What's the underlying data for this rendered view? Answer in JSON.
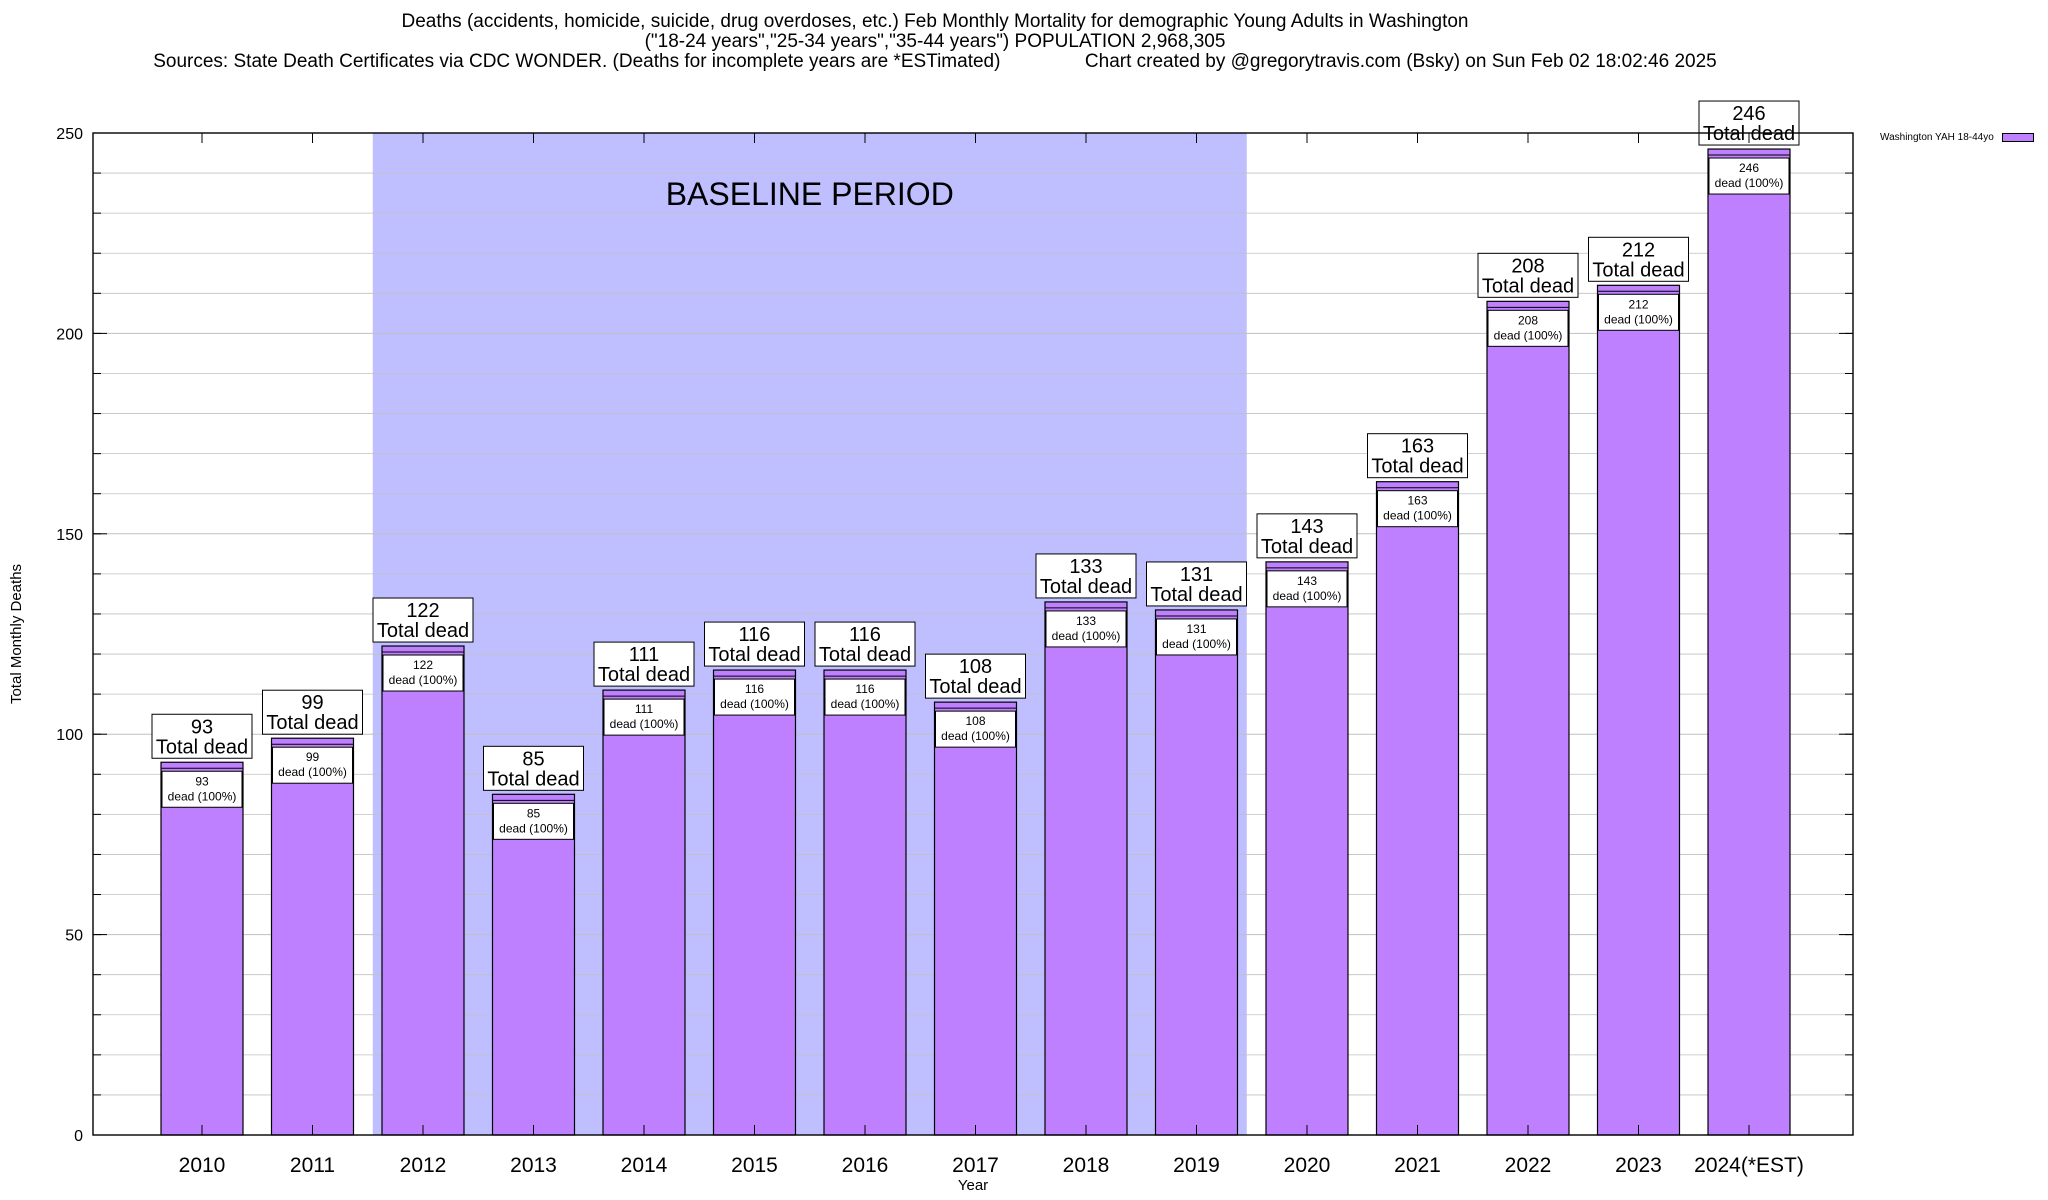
{
  "title": {
    "line1": "Deaths (accidents, homicide, suicide, drug overdoses, etc.) Feb Monthly Mortality for demographic Young Adults in Washington",
    "line2": "(\"18-24 years\",\"25-34 years\",\"35-44 years\") POPULATION 2,968,305",
    "line3_left": "Sources: State Death Certificates via CDC WONDER. (Deaths for incomplete years are *ESTimated)",
    "line3_right": "Chart created by @gregorytravis.com (Bsky) on Sun Feb 02 18:02:46 2025"
  },
  "legend": {
    "label": "Washington YAH 18-44yo"
  },
  "colors": {
    "bar": "#bf80ff",
    "baseline": "#bfbfff",
    "grid": "#c0c0c0"
  },
  "chart_data": {
    "type": "bar",
    "categories": [
      "2010",
      "2011",
      "2012",
      "2013",
      "2014",
      "2015",
      "2016",
      "2017",
      "2018",
      "2019",
      "2020",
      "2021",
      "2022",
      "2023",
      "2024(*EST)"
    ],
    "series": [
      {
        "name": "Washington YAH 18-44yo",
        "values": [
          93,
          99,
          122,
          85,
          111,
          116,
          116,
          108,
          133,
          131,
          143,
          163,
          208,
          212,
          246
        ]
      }
    ],
    "xlabel": "Year",
    "ylabel": "Total Monthly Deaths",
    "ylim": [
      0,
      250
    ],
    "yticks": [
      0,
      50,
      100,
      150,
      200,
      250
    ],
    "grid": true,
    "legend_position": "top-right outside",
    "label_top_suffix": "Total dead",
    "label_inner_suffix": "dead (100%)",
    "annotation": {
      "text": "BASELINE PERIOD",
      "start_category": "2012",
      "end_category": "2019"
    }
  }
}
